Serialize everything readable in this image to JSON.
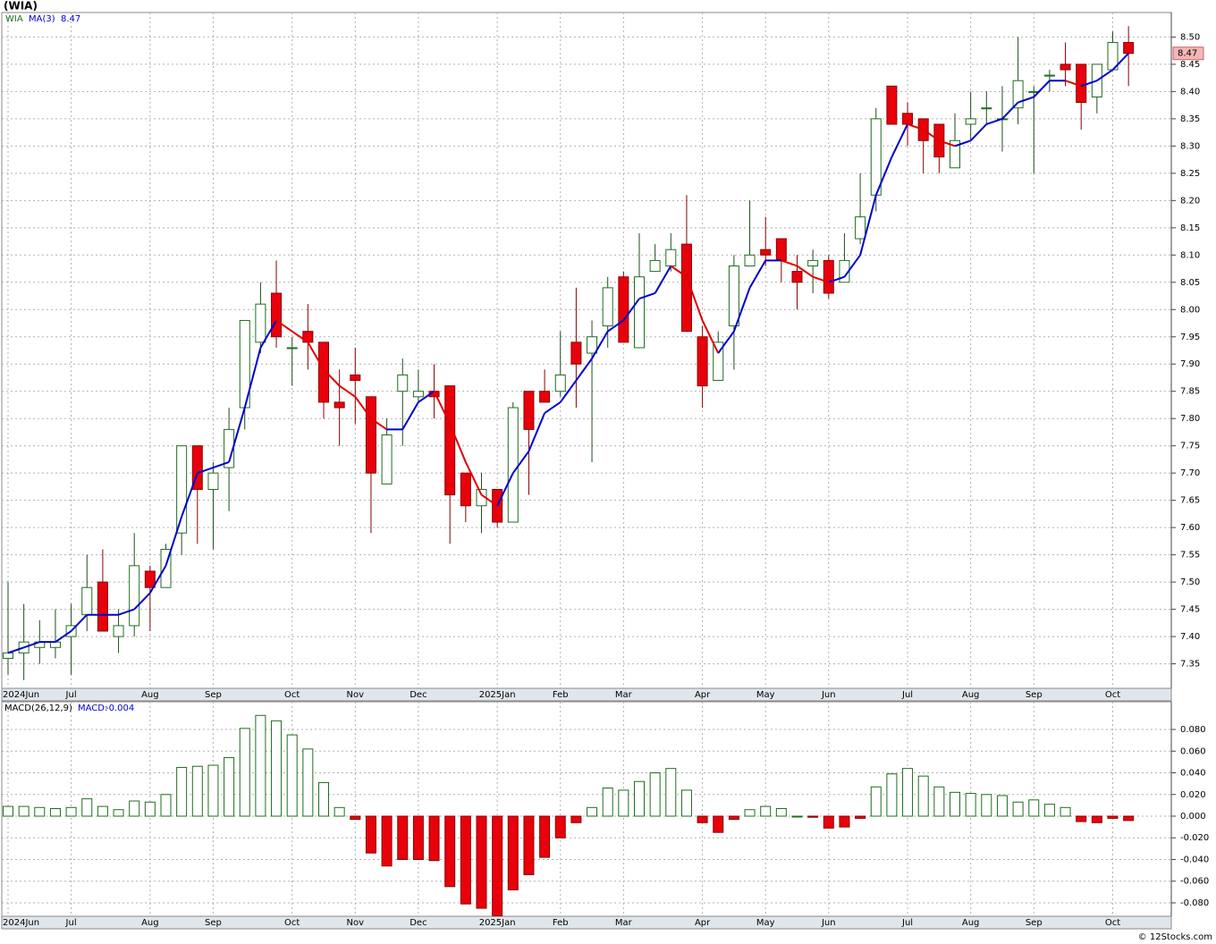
{
  "title": "(WIA)",
  "footer": "© 12Stocks.com",
  "chart_data": [
    {
      "type": "candlestick",
      "name": "WIA",
      "grid": true,
      "up_color": "#1e6e1e",
      "down_color": "#e8000b",
      "categories": [
        "2024Jun",
        null,
        null,
        null,
        "Jul",
        null,
        null,
        null,
        null,
        "Aug",
        null,
        null,
        null,
        "Sep",
        null,
        null,
        null,
        null,
        "Oct",
        null,
        null,
        null,
        "Nov",
        null,
        null,
        null,
        "Dec",
        null,
        null,
        null,
        null,
        "2025Jan",
        null,
        null,
        null,
        "Feb",
        null,
        null,
        null,
        "Mar",
        null,
        null,
        null,
        null,
        "Apr",
        null,
        null,
        null,
        "May",
        null,
        null,
        null,
        "Jun",
        null,
        null,
        null,
        null,
        "Jul",
        null,
        null,
        null,
        "Aug",
        null,
        null,
        null,
        "Sep",
        null,
        null,
        null,
        null,
        "Oct",
        null
      ],
      "open": [
        7.36,
        7.37,
        7.38,
        7.38,
        7.4,
        7.44,
        7.5,
        7.4,
        7.42,
        7.52,
        7.49,
        7.59,
        7.75,
        7.67,
        7.71,
        7.82,
        7.94,
        8.03,
        7.93,
        7.96,
        7.94,
        7.83,
        7.88,
        7.84,
        7.68,
        7.85,
        7.84,
        7.85,
        7.86,
        7.7,
        7.64,
        7.67,
        7.61,
        7.85,
        7.85,
        7.85,
        7.94,
        7.92,
        7.97,
        8.06,
        7.93,
        8.07,
        8.08,
        8.12,
        7.95,
        7.87,
        7.97,
        8.08,
        8.11,
        8.13,
        8.07,
        8.08,
        8.09,
        8.05,
        8.13,
        8.21,
        8.41,
        8.36,
        8.35,
        8.34,
        8.26,
        8.34,
        8.37,
        8.35,
        8.37,
        8.4,
        8.43,
        8.45,
        8.45,
        8.39,
        8.44,
        8.49
      ],
      "high": [
        7.5,
        7.46,
        7.43,
        7.45,
        7.46,
        7.55,
        7.56,
        7.45,
        7.59,
        7.53,
        7.57,
        7.75,
        7.75,
        7.72,
        7.82,
        7.98,
        8.05,
        8.09,
        7.95,
        8.01,
        7.94,
        7.89,
        7.93,
        7.84,
        7.8,
        7.91,
        7.89,
        7.9,
        7.86,
        7.7,
        7.7,
        7.67,
        7.83,
        7.85,
        7.89,
        7.96,
        8.04,
        7.98,
        8.06,
        8.07,
        8.14,
        8.12,
        8.14,
        8.21,
        7.97,
        7.96,
        8.1,
        8.2,
        8.17,
        8.13,
        8.1,
        8.11,
        8.1,
        8.14,
        8.25,
        8.37,
        8.41,
        8.38,
        8.35,
        8.34,
        8.36,
        8.4,
        8.4,
        8.41,
        8.5,
        8.41,
        8.44,
        8.49,
        8.45,
        8.45,
        8.51,
        8.52
      ],
      "low": [
        7.33,
        7.32,
        7.35,
        7.36,
        7.33,
        7.41,
        7.41,
        7.37,
        7.4,
        7.41,
        7.49,
        7.55,
        7.57,
        7.56,
        7.63,
        7.78,
        7.92,
        7.93,
        7.86,
        7.89,
        7.8,
        7.75,
        7.79,
        7.59,
        7.68,
        7.75,
        7.83,
        7.8,
        7.57,
        7.61,
        7.59,
        7.6,
        7.61,
        7.66,
        7.83,
        7.84,
        7.82,
        7.72,
        7.93,
        7.94,
        7.93,
        8.07,
        8.07,
        7.96,
        7.82,
        7.87,
        7.89,
        8.08,
        8.08,
        8.05,
        8.0,
        8.03,
        8.02,
        8.05,
        8.12,
        8.18,
        8.34,
        8.3,
        8.25,
        8.25,
        8.26,
        8.31,
        8.34,
        8.29,
        8.34,
        8.25,
        8.4,
        8.41,
        8.33,
        8.36,
        8.44,
        8.41
      ],
      "close": [
        7.37,
        7.39,
        7.39,
        7.39,
        7.42,
        7.49,
        7.41,
        7.42,
        7.53,
        7.49,
        7.56,
        7.75,
        7.67,
        7.7,
        7.78,
        7.98,
        8.01,
        7.95,
        7.93,
        7.94,
        7.83,
        7.82,
        7.87,
        7.7,
        7.77,
        7.88,
        7.85,
        7.84,
        7.66,
        7.64,
        7.67,
        7.61,
        7.82,
        7.78,
        7.83,
        7.88,
        7.9,
        7.95,
        8.04,
        7.94,
        8.06,
        8.09,
        8.11,
        7.96,
        7.86,
        7.94,
        8.08,
        8.1,
        8.1,
        8.09,
        8.05,
        8.09,
        8.03,
        8.09,
        8.17,
        8.35,
        8.34,
        8.34,
        8.31,
        8.28,
        8.31,
        8.35,
        8.37,
        8.35,
        8.42,
        8.4,
        8.43,
        8.44,
        8.38,
        8.45,
        8.49,
        8.47
      ],
      "ma": {
        "name": "MA(3)",
        "up_color": "#0000cc",
        "down_color": "#e00000",
        "values": [
          7.37,
          7.38,
          7.39,
          7.39,
          7.41,
          7.44,
          7.44,
          7.44,
          7.45,
          7.48,
          7.53,
          7.62,
          7.7,
          7.71,
          7.72,
          7.82,
          7.93,
          7.98,
          7.96,
          7.94,
          7.89,
          7.86,
          7.84,
          7.8,
          7.78,
          7.78,
          7.83,
          7.85,
          7.79,
          7.72,
          7.66,
          7.64,
          7.7,
          7.74,
          7.81,
          7.83,
          7.87,
          7.91,
          7.96,
          7.98,
          8.02,
          8.03,
          8.08,
          8.06,
          7.98,
          7.92,
          7.96,
          8.04,
          8.09,
          8.09,
          8.08,
          8.06,
          8.05,
          8.06,
          8.1,
          8.21,
          8.28,
          8.34,
          8.33,
          8.31,
          8.3,
          8.31,
          8.34,
          8.35,
          8.38,
          8.39,
          8.42,
          8.42,
          8.41,
          8.42,
          8.44,
          8.47
        ]
      },
      "ylim": [
        7.305,
        8.545
      ],
      "yticks": [
        7.35,
        {
          "value": 7.4,
          "label": "7.40"
        },
        7.45,
        {
          "value": 7.5,
          "label": "7.50"
        },
        7.55,
        {
          "value": 7.6,
          "label": "7.60"
        },
        7.65,
        {
          "value": 7.7,
          "label": "7.70"
        },
        7.75,
        {
          "value": 7.8,
          "label": "7.80"
        },
        7.85,
        {
          "value": 7.9,
          "label": "7.90"
        },
        7.95,
        {
          "value": 8,
          "label": "8.00"
        },
        8.05,
        {
          "value": 8.1,
          "label": "8.10"
        },
        8.15,
        {
          "value": 8.2,
          "label": "8.20"
        },
        8.25,
        {
          "value": 8.3,
          "label": "8.30"
        },
        8.35,
        {
          "value": 8.4,
          "label": "8.40"
        },
        8.45,
        {
          "value": 8.5,
          "label": "8.50"
        }
      ]
    },
    {
      "type": "bar",
      "name": "MACD(26,12,9)",
      "value_prefix": "MACD:",
      "grid": true,
      "up_color": "#1e6e1e",
      "down_color": "#e8000b",
      "categories": [
        "2024Jun",
        null,
        null,
        null,
        "Jul",
        null,
        null,
        null,
        null,
        "Aug",
        null,
        null,
        null,
        "Sep",
        null,
        null,
        null,
        null,
        "Oct",
        null,
        null,
        null,
        "Nov",
        null,
        null,
        null,
        "Dec",
        null,
        null,
        null,
        null,
        "2025Jan",
        null,
        null,
        null,
        "Feb",
        null,
        null,
        null,
        "Mar",
        null,
        null,
        null,
        null,
        "Apr",
        null,
        null,
        null,
        "May",
        null,
        null,
        null,
        "Jun",
        null,
        null,
        null,
        null,
        "Jul",
        null,
        null,
        null,
        "Aug",
        null,
        null,
        null,
        "Sep",
        null,
        null,
        null,
        null,
        "Oct",
        null
      ],
      "values": [
        0.009,
        0.009,
        0.008,
        0.007,
        0.008,
        0.016,
        0.009,
        0.006,
        0.014,
        0.013,
        0.02,
        0.045,
        0.046,
        0.047,
        0.054,
        0.081,
        0.093,
        0.088,
        0.075,
        0.062,
        0.031,
        0.008,
        -0.003,
        -0.034,
        -0.046,
        -0.04,
        -0.04,
        -0.041,
        -0.065,
        -0.081,
        -0.085,
        -0.092,
        -0.068,
        -0.054,
        -0.038,
        -0.02,
        -0.006,
        0.008,
        0.026,
        0.024,
        0.032,
        0.04,
        0.044,
        0.024,
        -0.006,
        -0.015,
        -0.003,
        0.006,
        0.009,
        0.007,
        0.0,
        -0.001,
        -0.011,
        -0.01,
        -0.002,
        0.027,
        0.039,
        0.044,
        0.037,
        0.027,
        0.022,
        0.021,
        0.02,
        0.019,
        0.013,
        0.015,
        0.011,
        0.008,
        -0.005,
        -0.006,
        -0.002,
        -0.004
      ],
      "ylim": [
        -0.0924,
        0.1056
      ],
      "yticks": [
        {
          "value": 0.08,
          "label": "0.080"
        },
        {
          "value": 0.06,
          "label": "0.060"
        },
        {
          "value": 0.04,
          "label": "0.040"
        },
        {
          "value": 0.02,
          "label": "0.020"
        },
        {
          "value": 0,
          "label": "0.000"
        },
        {
          "value": -0.02,
          "label": "-0.020"
        },
        {
          "value": -0.04,
          "label": "-0.040"
        },
        {
          "value": -0.06,
          "label": "-0.060"
        },
        {
          "value": -0.08,
          "label": "-0.080"
        }
      ]
    }
  ]
}
